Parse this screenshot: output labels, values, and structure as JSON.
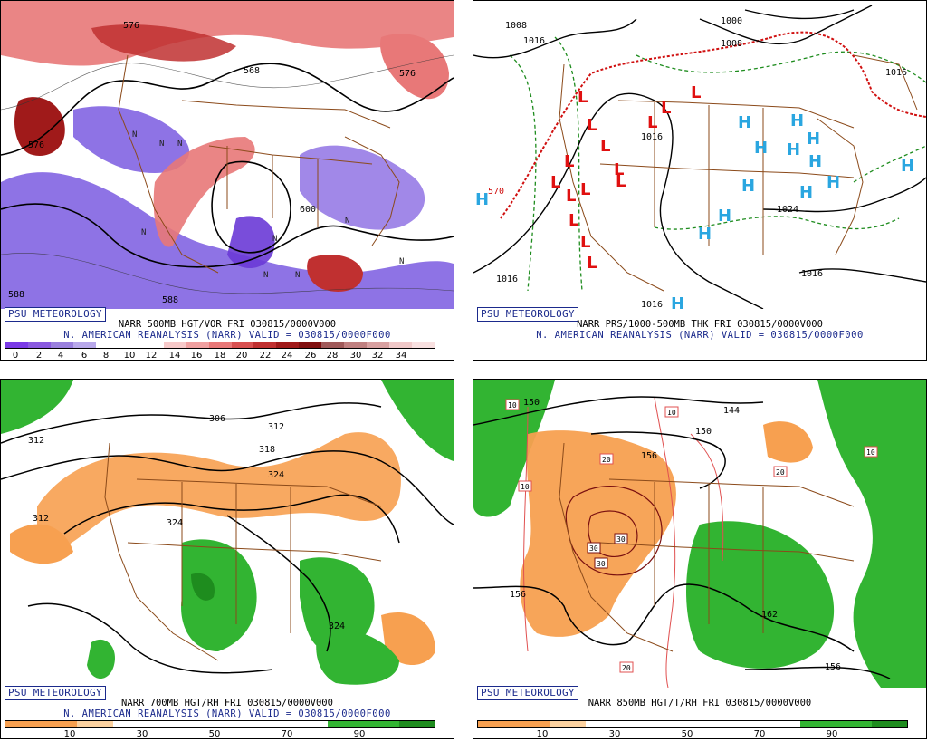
{
  "panels": [
    {
      "id": "vor500",
      "badge": "PSU METEOROLOGY",
      "caption1": "NARR 500MB HGT/VOR FRI 030815/0000V000",
      "caption2": "N. AMERICAN REANALYSIS (NARR) VALID = 030815/0000F000",
      "colorbar_colors": [
        "#7a3ae6",
        "#8a5ae0",
        "#9a80de",
        "#b8a8ea",
        "#ffffff",
        "#ffffff",
        "#ffffff",
        "#f7c9c9",
        "#f0a0a0",
        "#e87878",
        "#d85050",
        "#c03030",
        "#a01a1a",
        "#801010",
        "#a05a5a",
        "#c08080",
        "#d8a0a0",
        "#f0c8c8",
        "#f8e0e0"
      ],
      "colorbar_ticks": [
        "0",
        "2",
        "4",
        "6",
        "8",
        "10",
        "12",
        "14",
        "16",
        "18",
        "20",
        "22",
        "24",
        "26",
        "28",
        "30",
        "32",
        "34"
      ],
      "contour_labels": [
        "576",
        "568",
        "576",
        "576",
        "600",
        "588",
        "588"
      ],
      "symbols": [
        "N",
        "N",
        "N",
        "N",
        "N",
        "N",
        "N",
        "N",
        "N"
      ]
    },
    {
      "id": "prs1000",
      "badge": "PSU METEOROLOGY",
      "caption1": "NARR PRS/1000-500MB THK FRI 030815/0000V000",
      "caption2": "N. AMERICAN REANALYSIS (NARR) VALID = 030815/0000F000",
      "contour_labels": [
        "1008",
        "1016",
        "1000",
        "1008",
        "1016",
        "1016",
        "1024",
        "1016",
        "1016",
        "1016",
        "570"
      ],
      "low_symbol": "L",
      "high_symbol": "H"
    },
    {
      "id": "rh700",
      "badge": "PSU METEOROLOGY",
      "caption1": "NARR 700MB HGT/RH FRI 030815/0000V000",
      "caption2": "N. AMERICAN REANALYSIS (NARR) VALID = 030815/0000F000",
      "colorbar_colors": [
        "#f7a050",
        "#f7a050",
        "#fcd2a0",
        "#ffffff",
        "#ffffff",
        "#ffffff",
        "#ffffff",
        "#ffffff",
        "#ffffff",
        "#32b432",
        "#32b432",
        "#1e8c1e"
      ],
      "colorbar_ticks": [
        "10",
        "30",
        "50",
        "70",
        "90"
      ],
      "contour_labels": [
        "312",
        "306",
        "312",
        "318",
        "312",
        "324",
        "324",
        "324"
      ]
    },
    {
      "id": "t850",
      "badge": "PSU METEOROLOGY",
      "caption1": "NARR 850MB HGT/T/RH FRI 030815/0000V000",
      "caption2": "",
      "colorbar_colors": [
        "#f7a050",
        "#f7a050",
        "#fcd2a0",
        "#ffffff",
        "#ffffff",
        "#ffffff",
        "#ffffff",
        "#ffffff",
        "#ffffff",
        "#32b432",
        "#32b432",
        "#1e8c1e"
      ],
      "colorbar_ticks": [
        "10",
        "30",
        "50",
        "70",
        "90"
      ],
      "contour_labels": [
        "150",
        "156",
        "150",
        "144",
        "156",
        "162",
        "156"
      ],
      "temp_labels": [
        "10",
        "10",
        "10",
        "20",
        "20",
        "10",
        "30",
        "30",
        "30",
        "20"
      ]
    }
  ]
}
